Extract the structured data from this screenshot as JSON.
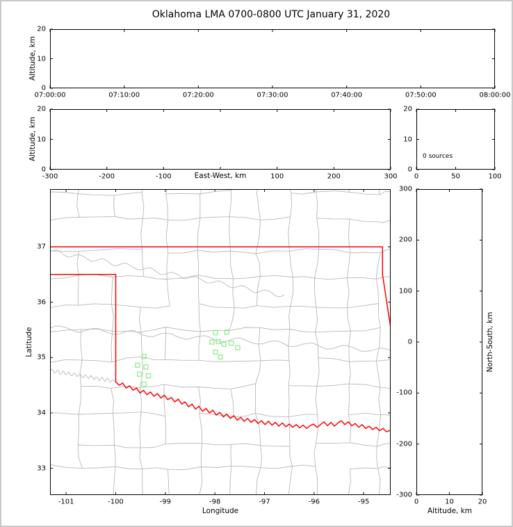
{
  "title": "Oklahoma LMA 0700-0800 UTC January 31, 2020",
  "colors": {
    "state_border": "#ff0000",
    "county_lines": "#b8b8b8",
    "stations": "#90EE90",
    "axes": "#000000",
    "frame": "#c9c9c9"
  },
  "panels": {
    "time_height": {
      "ylabel": "Altitude, km",
      "yticks": [
        0,
        10,
        20
      ],
      "xticks": [
        "07:00:00",
        "07:10:00",
        "07:20:00",
        "07:30:00",
        "07:40:00",
        "07:50:00",
        "08:00:00"
      ]
    },
    "ew_height": {
      "ylabel": "Altitude, km",
      "xlabel": "East-West, km",
      "yticks": [
        0,
        10,
        20
      ],
      "xticks": [
        -300,
        -200,
        -100,
        100,
        200,
        300
      ]
    },
    "histogram": {
      "annotation": "0 sources",
      "yticks": [
        0,
        10,
        20
      ],
      "xticks": [
        0,
        50,
        100
      ]
    },
    "map": {
      "ylabel": "Latitude",
      "xlabel": "Longitude",
      "yticks": [
        33,
        34,
        35,
        36,
        37
      ],
      "xticks": [
        -101,
        -100,
        -99,
        -98,
        -97,
        -96,
        -95
      ]
    },
    "ns_height": {
      "ylabel": "North-South, km",
      "xlabel": "Altitude, km",
      "yticks": [
        300,
        200,
        100,
        0,
        -100,
        -200,
        -300
      ],
      "xticks": [
        0,
        10,
        20
      ]
    }
  },
  "chart_data": {
    "type": "scatter",
    "title": "Oklahoma LMA 0700-0800 UTC January 31, 2020",
    "source_count": 0,
    "lightning_sources": [],
    "time_axis_utc": {
      "start": "07:00:00",
      "end": "08:00:00",
      "tick_interval_min": 10
    },
    "altitude_km_lim": [
      0,
      20
    ],
    "east_west_km_lim": [
      -300,
      300
    ],
    "north_south_km_lim": [
      -300,
      300
    ],
    "histogram_count_lim": [
      0,
      100
    ],
    "map_lon_lim": [
      -101.31,
      -94.47
    ],
    "map_lat_lim": [
      32.53,
      38.03
    ],
    "stations_lon_lat": [
      [
        -97.99,
        35.45
      ],
      [
        -97.76,
        35.46
      ],
      [
        -98.06,
        35.28
      ],
      [
        -97.93,
        35.29
      ],
      [
        -97.82,
        35.24
      ],
      [
        -97.67,
        35.26
      ],
      [
        -97.54,
        35.18
      ],
      [
        -97.99,
        35.1
      ],
      [
        -97.89,
        35.01
      ],
      [
        -99.43,
        35.02
      ],
      [
        -99.56,
        34.86
      ],
      [
        -99.39,
        34.83
      ],
      [
        -99.52,
        34.7
      ],
      [
        -99.34,
        34.67
      ],
      [
        -99.43,
        34.52
      ]
    ],
    "oklahoma_border": {
      "north_and_east": [
        [
          -101.31,
          37.0
        ],
        [
          -94.62,
          37.0
        ],
        [
          -94.62,
          36.5
        ],
        [
          -94.43,
          35.38
        ]
      ],
      "west_and_red_river": [
        [
          -101.31,
          36.5
        ],
        [
          -100.0,
          36.5
        ],
        [
          -100.0,
          34.56
        ],
        [
          -99.93,
          34.5
        ],
        [
          -99.86,
          34.54
        ],
        [
          -99.79,
          34.45
        ],
        [
          -99.72,
          34.49
        ],
        [
          -99.65,
          34.41
        ],
        [
          -99.58,
          34.45
        ],
        [
          -99.51,
          34.36
        ],
        [
          -99.44,
          34.41
        ],
        [
          -99.37,
          34.33
        ],
        [
          -99.3,
          34.38
        ],
        [
          -99.23,
          34.3
        ],
        [
          -99.16,
          34.35
        ],
        [
          -99.09,
          34.27
        ],
        [
          -99.02,
          34.32
        ],
        [
          -98.95,
          34.24
        ],
        [
          -98.88,
          34.28
        ],
        [
          -98.81,
          34.2
        ],
        [
          -98.74,
          34.25
        ],
        [
          -98.67,
          34.16
        ],
        [
          -98.6,
          34.2
        ],
        [
          -98.53,
          34.11
        ],
        [
          -98.46,
          34.16
        ],
        [
          -98.39,
          34.07
        ],
        [
          -98.32,
          34.12
        ],
        [
          -98.25,
          34.03
        ],
        [
          -98.18,
          34.08
        ],
        [
          -98.11,
          34.0
        ],
        [
          -98.04,
          34.05
        ],
        [
          -97.97,
          33.96
        ],
        [
          -97.9,
          34.01
        ],
        [
          -97.83,
          33.93
        ],
        [
          -97.76,
          33.98
        ],
        [
          -97.69,
          33.9
        ],
        [
          -97.62,
          33.95
        ],
        [
          -97.55,
          33.87
        ],
        [
          -97.48,
          33.92
        ],
        [
          -97.41,
          33.85
        ],
        [
          -97.34,
          33.9
        ],
        [
          -97.27,
          33.83
        ],
        [
          -97.2,
          33.88
        ],
        [
          -97.13,
          33.81
        ],
        [
          -97.06,
          33.86
        ],
        [
          -96.99,
          33.79
        ],
        [
          -96.92,
          33.85
        ],
        [
          -96.85,
          33.78
        ],
        [
          -96.78,
          33.83
        ],
        [
          -96.71,
          33.76
        ],
        [
          -96.64,
          33.82
        ],
        [
          -96.57,
          33.75
        ],
        [
          -96.5,
          33.8
        ],
        [
          -96.43,
          33.74
        ],
        [
          -96.36,
          33.79
        ],
        [
          -96.29,
          33.73
        ],
        [
          -96.22,
          33.78
        ],
        [
          -96.15,
          33.72
        ],
        [
          -96.08,
          33.77
        ],
        [
          -96.01,
          33.8
        ],
        [
          -95.94,
          33.74
        ],
        [
          -95.87,
          33.79
        ],
        [
          -95.8,
          33.84
        ],
        [
          -95.73,
          33.77
        ],
        [
          -95.66,
          33.83
        ],
        [
          -95.59,
          33.76
        ],
        [
          -95.52,
          33.82
        ],
        [
          -95.45,
          33.86
        ],
        [
          -95.38,
          33.79
        ],
        [
          -95.31,
          33.84
        ],
        [
          -95.24,
          33.77
        ],
        [
          -95.17,
          33.81
        ],
        [
          -95.1,
          33.74
        ],
        [
          -95.03,
          33.79
        ],
        [
          -94.96,
          33.72
        ],
        [
          -94.89,
          33.76
        ],
        [
          -94.82,
          33.7
        ],
        [
          -94.75,
          33.74
        ],
        [
          -94.68,
          33.68
        ],
        [
          -94.61,
          33.72
        ],
        [
          -94.54,
          33.66
        ],
        [
          -94.45,
          33.69
        ]
      ]
    }
  }
}
